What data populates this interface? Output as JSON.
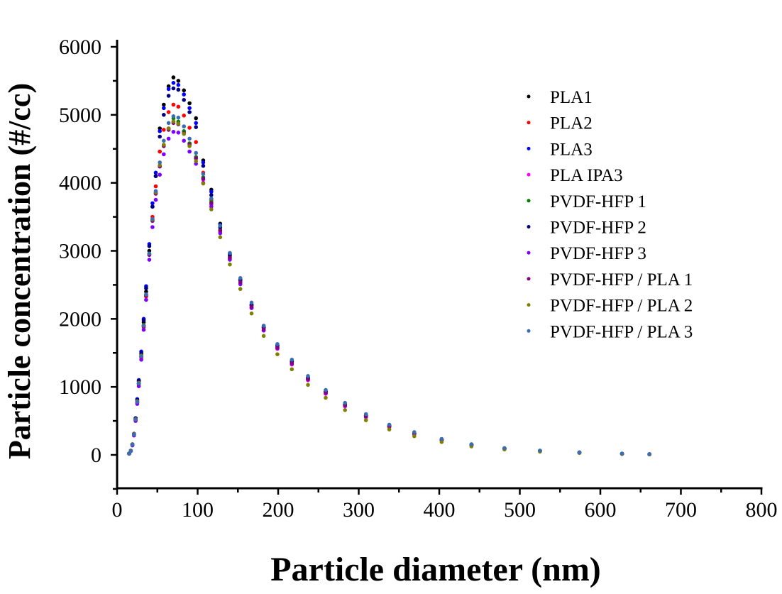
{
  "chart_data": {
    "type": "scatter",
    "title": "",
    "xlabel": "Particle diameter (nm)",
    "ylabel": "Particle concentration (#/cc)",
    "xlim": [
      0,
      800
    ],
    "ylim": [
      -500,
      6000
    ],
    "xticks": [
      0,
      100,
      200,
      300,
      400,
      500,
      600,
      700,
      800
    ],
    "yticks": [
      0,
      1000,
      2000,
      3000,
      4000,
      5000,
      6000
    ],
    "grid": false,
    "legend_position": "top-right",
    "x": [
      15,
      17,
      19,
      21,
      23,
      25,
      27,
      30,
      33,
      36,
      40,
      44,
      48,
      53,
      58,
      64,
      70,
      76,
      83,
      90,
      98,
      107,
      117,
      128,
      140,
      153,
      167,
      182,
      199,
      217,
      237,
      259,
      283,
      309,
      338,
      369,
      403,
      440,
      481,
      525,
      574,
      627,
      661
    ],
    "series": [
      {
        "name": "PLA1",
        "color": "#000000",
        "values": [
          22,
          62,
          155,
          310,
          530,
          800,
          1080,
          1480,
          1950,
          2400,
          3000,
          3650,
          4100,
          4800,
          5150,
          5420,
          5550,
          5500,
          5360,
          5170,
          4950,
          4330,
          3900,
          3400,
          2960,
          2580,
          2210,
          1880,
          1610,
          1370,
          1130,
          930,
          740,
          575,
          425,
          315,
          220,
          145,
          92,
          58,
          33,
          17,
          9
        ]
      },
      {
        "name": "PLA2",
        "color": "#ff0000",
        "values": [
          20,
          58,
          148,
          295,
          510,
          770,
          1040,
          1430,
          1880,
          2330,
          2950,
          3500,
          3950,
          4460,
          4780,
          5040,
          5150,
          5120,
          4990,
          4810,
          4600,
          4150,
          3750,
          3300,
          2890,
          2520,
          2160,
          1830,
          1560,
          1330,
          1100,
          900,
          715,
          555,
          410,
          305,
          215,
          140,
          90,
          55,
          32,
          16,
          8
        ]
      },
      {
        "name": "PLA3",
        "color": "#0000ff",
        "values": [
          18,
          58,
          150,
          305,
          540,
          820,
          1100,
          1520,
          2000,
          2480,
          3100,
          3700,
          4150,
          4760,
          5100,
          5380,
          5470,
          5440,
          5300,
          5100,
          4880,
          4300,
          3870,
          3380,
          2950,
          2580,
          2210,
          1880,
          1610,
          1380,
          1140,
          935,
          745,
          580,
          430,
          320,
          225,
          150,
          95,
          60,
          35,
          18,
          10
        ]
      },
      {
        "name": "PLA IPA3",
        "color": "#ff00ff",
        "values": [
          20,
          60,
          150,
          300,
          520,
          780,
          1050,
          1450,
          1900,
          2350,
          2950,
          3450,
          3850,
          4250,
          4550,
          4800,
          4900,
          4880,
          4750,
          4580,
          4380,
          4050,
          3680,
          3280,
          2880,
          2520,
          2160,
          1830,
          1560,
          1330,
          1100,
          900,
          715,
          560,
          415,
          305,
          215,
          143,
          90,
          56,
          32,
          16,
          8
        ]
      },
      {
        "name": "PVDF-HFP 1",
        "color": "#008000",
        "values": [
          20,
          60,
          150,
          300,
          520,
          780,
          1050,
          1450,
          1900,
          2350,
          2950,
          3450,
          3850,
          4250,
          4550,
          4800,
          4950,
          4900,
          4760,
          4580,
          4380,
          4080,
          3720,
          3320,
          2920,
          2560,
          2200,
          1870,
          1600,
          1370,
          1130,
          930,
          740,
          580,
          430,
          320,
          225,
          150,
          95,
          60,
          35,
          18,
          10
        ]
      },
      {
        "name": "PVDF-HFP 2",
        "color": "#000080",
        "values": [
          20,
          62,
          155,
          310,
          540,
          810,
          1090,
          1500,
          1980,
          2450,
          3070,
          3650,
          4100,
          4680,
          5000,
          5280,
          5390,
          5370,
          5220,
          5040,
          4820,
          4250,
          3820,
          3350,
          2930,
          2570,
          2200,
          1870,
          1600,
          1370,
          1130,
          930,
          740,
          580,
          430,
          320,
          225,
          150,
          95,
          60,
          35,
          18,
          10
        ]
      },
      {
        "name": "PVDF-HFP 3",
        "color": "#8000ff",
        "values": [
          18,
          55,
          140,
          285,
          500,
          750,
          1010,
          1400,
          1840,
          2280,
          2870,
          3350,
          3750,
          4120,
          4420,
          4650,
          4750,
          4740,
          4620,
          4460,
          4280,
          4000,
          3650,
          3260,
          2870,
          2510,
          2160,
          1830,
          1570,
          1340,
          1110,
          910,
          725,
          565,
          420,
          310,
          218,
          145,
          92,
          57,
          33,
          17,
          9
        ]
      },
      {
        "name": "PVDF-HFP / PLA 1",
        "color": "#800080",
        "values": [
          20,
          58,
          148,
          298,
          515,
          775,
          1045,
          1445,
          1895,
          2345,
          2940,
          3440,
          3840,
          4240,
          4540,
          4780,
          4880,
          4860,
          4730,
          4560,
          4360,
          4060,
          3700,
          3300,
          2900,
          2540,
          2180,
          1850,
          1580,
          1350,
          1115,
          915,
          730,
          570,
          422,
          314,
          220,
          147,
          93,
          58,
          34,
          17,
          9
        ]
      },
      {
        "name": "PVDF-HFP / PLA 2",
        "color": "#808000",
        "values": [
          22,
          62,
          155,
          305,
          525,
          790,
          1060,
          1460,
          1910,
          2360,
          2960,
          3460,
          3860,
          4260,
          4560,
          4800,
          4900,
          4870,
          4720,
          4540,
          4320,
          3990,
          3610,
          3200,
          2800,
          2440,
          2080,
          1750,
          1480,
          1260,
          1030,
          840,
          660,
          510,
          375,
          275,
          190,
          125,
          80,
          48,
          28,
          14,
          7
        ]
      },
      {
        "name": "PVDF-HFP / PLA 3",
        "color": "#3a6eb0",
        "values": [
          20,
          60,
          150,
          300,
          520,
          780,
          1050,
          1450,
          1900,
          2360,
          2960,
          3470,
          3880,
          4300,
          4620,
          4880,
          4980,
          4960,
          4830,
          4650,
          4440,
          4130,
          3770,
          3370,
          2970,
          2600,
          2240,
          1900,
          1630,
          1400,
          1160,
          955,
          765,
          600,
          445,
          335,
          235,
          158,
          100,
          64,
          38,
          20,
          12
        ]
      }
    ]
  }
}
